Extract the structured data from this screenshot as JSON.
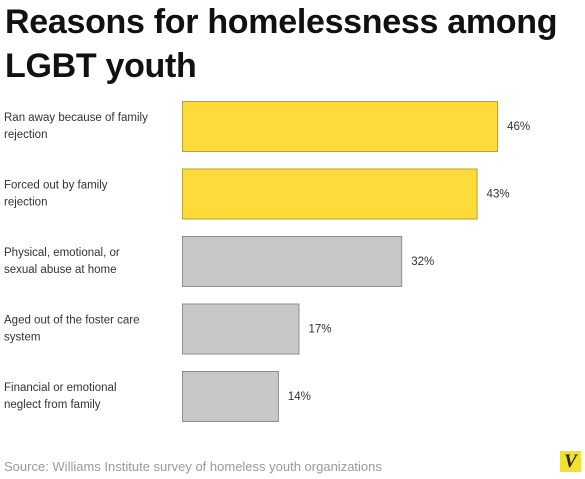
{
  "title": "Reasons for homelessness among LGBT youth",
  "source": "Source: Williams Institute survey of homeless youth organizations",
  "logo_text": "V",
  "colors": {
    "highlight": "#fcdb3a",
    "highlight_stroke": "#b8a12c",
    "neutral": "#c8c8c8",
    "neutral_stroke": "#8e8e8e",
    "logo_bg": "#f2e230"
  },
  "chart_data": {
    "type": "bar",
    "orientation": "horizontal",
    "title": "Reasons for homelessness among LGBT youth",
    "xlabel": "",
    "ylabel": "",
    "xlim": [
      0,
      50
    ],
    "grid": false,
    "categories": [
      [
        "Ran away because of family",
        "rejection"
      ],
      [
        "Forced out by family",
        "rejection"
      ],
      [
        "Physical, emotional, or",
        "sexual abuse at home"
      ],
      [
        "Aged out of the foster care",
        "system"
      ],
      [
        "Financial or emotional",
        "neglect from family"
      ]
    ],
    "values": [
      46,
      43,
      32,
      17,
      14
    ],
    "value_labels": [
      "46%",
      "43%",
      "32%",
      "17%",
      "14%"
    ],
    "highlight": [
      true,
      true,
      false,
      false,
      false
    ]
  }
}
